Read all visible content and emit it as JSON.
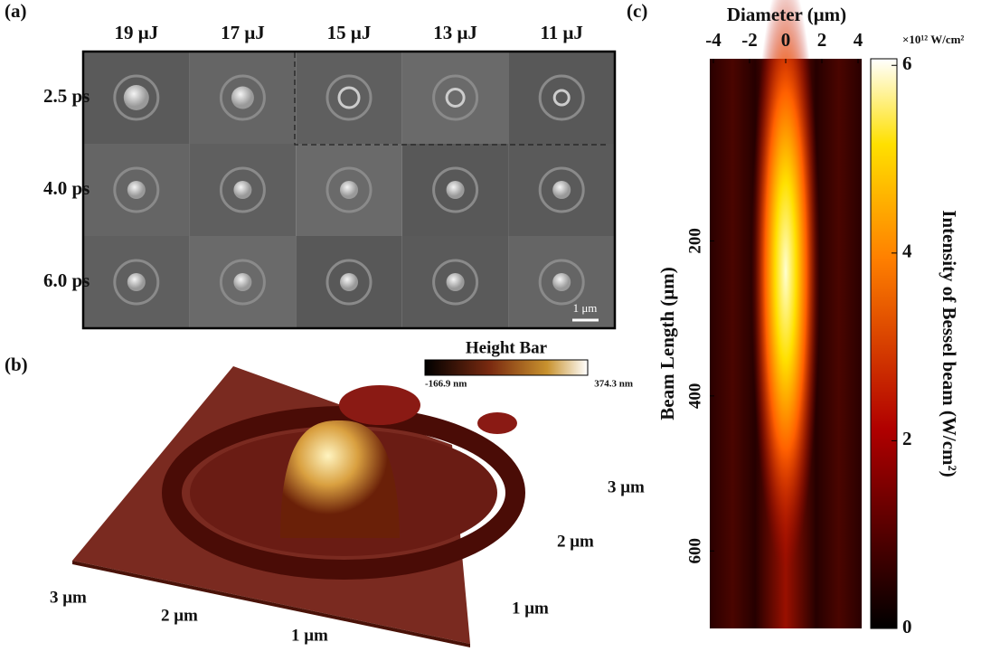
{
  "panel_a": {
    "label": "(a)",
    "columns": [
      "19 μJ",
      "17 μJ",
      "15 μJ",
      "13 μJ",
      "11 μJ"
    ],
    "rows": [
      "2.5 ps",
      "4.0 ps",
      "6.0 ps"
    ],
    "scale_bar": "1 μm"
  },
  "panel_b": {
    "label": "(b)",
    "height_bar_title": "Height Bar",
    "height_min": "-166.9 nm",
    "height_max": "374.3 nm",
    "axis_front": [
      "3 μm",
      "2 μm",
      "1 μm"
    ],
    "axis_side": [
      "3 μm",
      "2 μm",
      "1 μm"
    ]
  },
  "chart_data": {
    "type": "heatmap",
    "panel_label": "(c)",
    "xlabel": "Diameter (μm)",
    "ylabel": "Beam Length (μm)",
    "xlim": [
      -4.2,
      4.2
    ],
    "xticks": [
      -4,
      -2,
      0,
      2,
      4
    ],
    "ylim": [
      -35,
      700
    ],
    "yticks": [
      200,
      400,
      600
    ],
    "colorbar_unit": "×10¹² W/cm²",
    "colorbar_label": "Intensity of Bessel beam (W/cm²)",
    "clim": [
      0,
      6.07
    ],
    "cticks": [
      0,
      2,
      4,
      6
    ]
  }
}
